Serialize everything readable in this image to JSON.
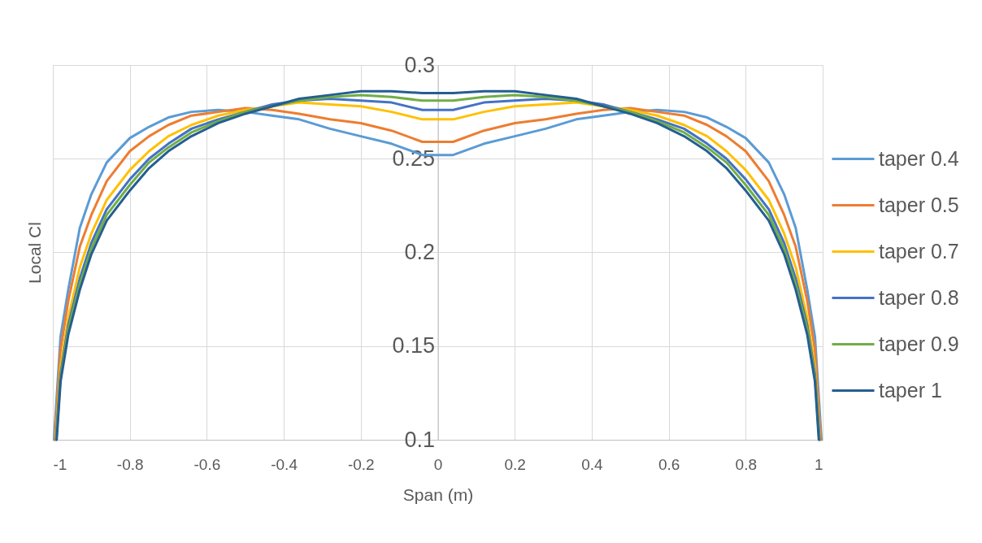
{
  "chart_data": {
    "type": "line",
    "xlabel": "Span (m)",
    "ylabel": "Local Cl",
    "xlim": [
      -1,
      1
    ],
    "ylim": [
      0.1,
      0.3
    ],
    "xticks": [
      -1,
      -0.8,
      -0.6,
      -0.4,
      -0.2,
      0,
      0.2,
      0.4,
      0.6,
      0.8,
      1
    ],
    "yticks": [
      0.1,
      0.15,
      0.2,
      0.25,
      0.3
    ],
    "grid": true,
    "legend": "right",
    "line_style": "solid",
    "series": [
      {
        "name": "taper 0.4",
        "color": "#5b9bd5",
        "x": [
          -0.997,
          -0.98,
          -0.96,
          -0.93,
          -0.9,
          -0.86,
          -0.8,
          -0.75,
          -0.7,
          -0.64,
          -0.57,
          -0.5,
          -0.43,
          -0.36,
          -0.28,
          -0.2,
          -0.12,
          -0.04,
          0.04,
          0.12,
          0.2,
          0.28,
          0.36,
          0.43,
          0.5,
          0.57,
          0.64,
          0.7,
          0.75,
          0.8,
          0.86,
          0.9,
          0.93,
          0.96,
          0.98,
          0.997
        ],
        "values": [
          0.1,
          0.155,
          0.18,
          0.213,
          0.231,
          0.248,
          0.261,
          0.267,
          0.272,
          0.275,
          0.276,
          0.275,
          0.273,
          0.271,
          0.266,
          0.262,
          0.258,
          0.252,
          0.252,
          0.258,
          0.262,
          0.266,
          0.271,
          0.273,
          0.275,
          0.276,
          0.275,
          0.272,
          0.267,
          0.261,
          0.248,
          0.231,
          0.213,
          0.18,
          0.155,
          0.1
        ]
      },
      {
        "name": "taper 0.5",
        "color": "#ed7d31",
        "x": [
          -0.995,
          -0.98,
          -0.96,
          -0.93,
          -0.9,
          -0.86,
          -0.8,
          -0.75,
          -0.7,
          -0.64,
          -0.57,
          -0.5,
          -0.43,
          -0.36,
          -0.28,
          -0.2,
          -0.12,
          -0.04,
          0.04,
          0.12,
          0.2,
          0.28,
          0.36,
          0.43,
          0.5,
          0.57,
          0.64,
          0.7,
          0.75,
          0.8,
          0.86,
          0.9,
          0.93,
          0.96,
          0.98,
          0.995
        ],
        "values": [
          0.1,
          0.148,
          0.174,
          0.203,
          0.22,
          0.238,
          0.254,
          0.262,
          0.268,
          0.273,
          0.275,
          0.277,
          0.276,
          0.274,
          0.271,
          0.269,
          0.265,
          0.259,
          0.259,
          0.265,
          0.269,
          0.271,
          0.274,
          0.276,
          0.277,
          0.275,
          0.273,
          0.268,
          0.262,
          0.254,
          0.238,
          0.22,
          0.203,
          0.174,
          0.148,
          0.1
        ]
      },
      {
        "name": "taper 0.7",
        "color": "#ffc000",
        "x": [
          -0.993,
          -0.98,
          -0.96,
          -0.93,
          -0.9,
          -0.86,
          -0.8,
          -0.75,
          -0.7,
          -0.64,
          -0.57,
          -0.5,
          -0.43,
          -0.36,
          -0.28,
          -0.2,
          -0.12,
          -0.04,
          0.04,
          0.12,
          0.2,
          0.28,
          0.36,
          0.43,
          0.5,
          0.57,
          0.64,
          0.7,
          0.75,
          0.8,
          0.86,
          0.9,
          0.93,
          0.96,
          0.98,
          0.993
        ],
        "values": [
          0.1,
          0.139,
          0.165,
          0.192,
          0.21,
          0.228,
          0.244,
          0.254,
          0.262,
          0.268,
          0.273,
          0.276,
          0.278,
          0.28,
          0.279,
          0.278,
          0.275,
          0.271,
          0.271,
          0.275,
          0.278,
          0.279,
          0.28,
          0.278,
          0.276,
          0.273,
          0.268,
          0.262,
          0.254,
          0.244,
          0.228,
          0.21,
          0.192,
          0.165,
          0.139,
          0.1
        ]
      },
      {
        "name": "taper 0.8",
        "color": "#4472c4",
        "x": [
          -0.992,
          -0.98,
          -0.96,
          -0.93,
          -0.9,
          -0.86,
          -0.8,
          -0.75,
          -0.7,
          -0.64,
          -0.57,
          -0.5,
          -0.43,
          -0.36,
          -0.28,
          -0.2,
          -0.12,
          -0.04,
          0.04,
          0.12,
          0.2,
          0.28,
          0.36,
          0.43,
          0.5,
          0.57,
          0.64,
          0.7,
          0.75,
          0.8,
          0.86,
          0.9,
          0.93,
          0.96,
          0.98,
          0.992
        ],
        "values": [
          0.1,
          0.135,
          0.161,
          0.186,
          0.205,
          0.223,
          0.239,
          0.25,
          0.258,
          0.266,
          0.271,
          0.275,
          0.279,
          0.281,
          0.282,
          0.281,
          0.28,
          0.276,
          0.276,
          0.28,
          0.281,
          0.282,
          0.281,
          0.279,
          0.275,
          0.271,
          0.266,
          0.258,
          0.25,
          0.239,
          0.223,
          0.205,
          0.186,
          0.161,
          0.135,
          0.1
        ]
      },
      {
        "name": "taper 0.9",
        "color": "#70ad47",
        "x": [
          -0.991,
          -0.98,
          -0.96,
          -0.93,
          -0.9,
          -0.86,
          -0.8,
          -0.75,
          -0.7,
          -0.64,
          -0.57,
          -0.5,
          -0.43,
          -0.36,
          -0.28,
          -0.2,
          -0.12,
          -0.04,
          0.04,
          0.12,
          0.2,
          0.28,
          0.36,
          0.43,
          0.5,
          0.57,
          0.64,
          0.7,
          0.75,
          0.8,
          0.86,
          0.9,
          0.93,
          0.96,
          0.98,
          0.991
        ],
        "values": [
          0.1,
          0.133,
          0.159,
          0.183,
          0.202,
          0.22,
          0.236,
          0.248,
          0.256,
          0.264,
          0.27,
          0.275,
          0.278,
          0.281,
          0.283,
          0.284,
          0.283,
          0.281,
          0.281,
          0.283,
          0.284,
          0.283,
          0.281,
          0.278,
          0.275,
          0.27,
          0.264,
          0.256,
          0.248,
          0.236,
          0.22,
          0.202,
          0.183,
          0.159,
          0.133,
          0.1
        ]
      },
      {
        "name": "taper 1",
        "color": "#255e91",
        "x": [
          -0.99,
          -0.98,
          -0.96,
          -0.93,
          -0.9,
          -0.86,
          -0.8,
          -0.75,
          -0.7,
          -0.64,
          -0.57,
          -0.5,
          -0.43,
          -0.36,
          -0.28,
          -0.2,
          -0.12,
          -0.04,
          0.04,
          0.12,
          0.2,
          0.28,
          0.36,
          0.43,
          0.5,
          0.57,
          0.64,
          0.7,
          0.75,
          0.8,
          0.86,
          0.9,
          0.93,
          0.96,
          0.98,
          0.99
        ],
        "values": [
          0.1,
          0.131,
          0.156,
          0.18,
          0.199,
          0.217,
          0.233,
          0.245,
          0.254,
          0.262,
          0.269,
          0.274,
          0.278,
          0.282,
          0.284,
          0.286,
          0.286,
          0.285,
          0.285,
          0.286,
          0.286,
          0.284,
          0.282,
          0.278,
          0.274,
          0.269,
          0.262,
          0.254,
          0.245,
          0.233,
          0.217,
          0.199,
          0.18,
          0.156,
          0.131,
          0.1
        ]
      }
    ]
  }
}
